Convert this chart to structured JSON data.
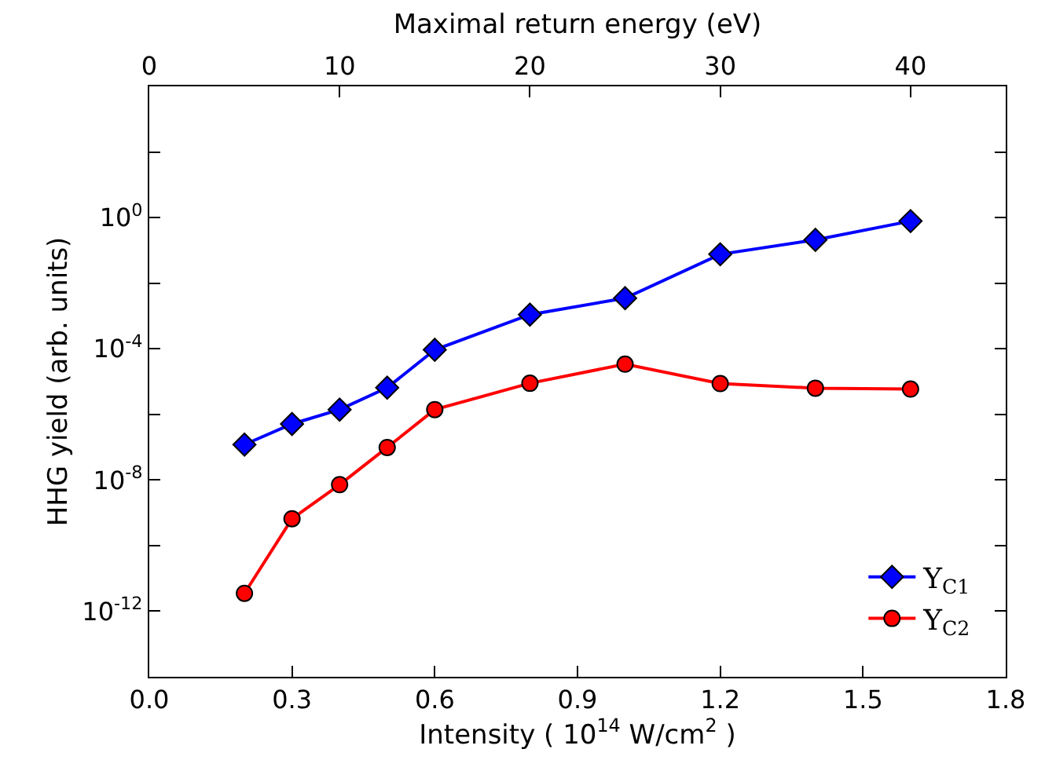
{
  "chart_data": {
    "type": "line",
    "xlabel": "Intensity ( 10$^{14}$ W/cm$^{2}$ )",
    "ylabel": "HHG yield (arb. units)",
    "x2label": "Maximal return energy (eV)",
    "x": [
      0.2,
      0.3,
      0.4,
      0.5,
      0.6,
      0.8,
      1.0,
      1.2,
      1.4,
      1.6
    ],
    "series": [
      {
        "name": "Y$_{C1}$",
        "color": "#0000ff",
        "marker": "diamond",
        "values": [
          1.2e-07,
          5.1e-07,
          1.4e-06,
          6.5e-06,
          9.3e-05,
          0.0011,
          0.0035,
          0.076,
          0.21,
          0.78
        ]
      },
      {
        "name": "Y$_{C2}$",
        "color": "#ff0000",
        "marker": "circle",
        "values": [
          3.5e-12,
          6.6e-10,
          7.2e-09,
          9.8e-08,
          1.4e-06,
          8.9e-06,
          3.4e-05,
          8.7e-06,
          6.3e-06,
          5.9e-06
        ]
      }
    ],
    "xlim": [
      0.0,
      1.8
    ],
    "xticks": [
      {
        "value": 0.0,
        "label": "0.0"
      },
      0.3,
      0.6,
      0.9,
      1.2,
      1.5,
      1.8
    ],
    "x2lim": [
      0,
      45
    ],
    "x2ticks": [
      0,
      10,
      20,
      30,
      40
    ],
    "log": "y",
    "ylim": [
      1e-14,
      10000.0
    ],
    "yticks": [
      {
        "value": 1e-12,
        "label": "10$^{-12}$"
      },
      {
        "value": 1e-10,
        "label": null
      },
      {
        "value": 1e-08,
        "label": "10$^{-8}$"
      },
      {
        "value": 1e-06,
        "label": null
      },
      {
        "value": 0.0001,
        "label": "10$^{-4}$"
      },
      {
        "value": 0.01,
        "label": null
      },
      {
        "value": 1,
        "label": "10$^{0}$"
      },
      {
        "value": 100,
        "label": null
      }
    ],
    "legend": "bottom right"
  }
}
